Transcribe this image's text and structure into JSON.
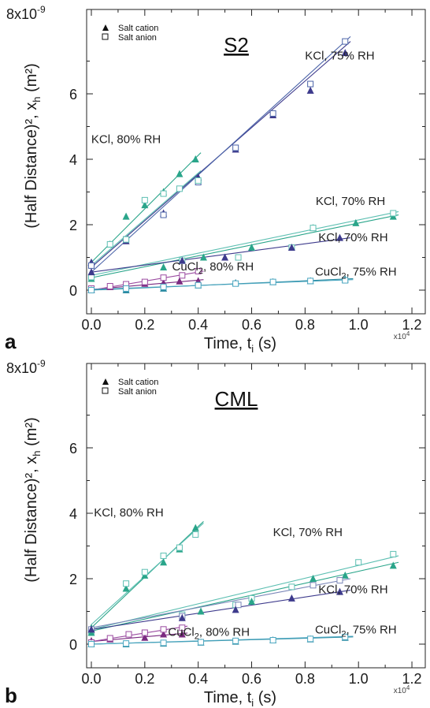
{
  "chart_data": [
    {
      "type": "scatter",
      "panel_letter": "a",
      "title": "S2",
      "xlabel": "Time, t",
      "xlabel_sub": "i",
      "xlabel_unit": " (s)",
      "x_exponent": "x10",
      "x_exponent_sup": "4",
      "ylabel": "(Half Distance)², x",
      "ylabel_sub": "h",
      "ylabel_tail": " (m²)",
      "y_top_label": "8x10",
      "y_top_sup": "-9",
      "xlim": [
        0,
        1.25
      ],
      "ylim": [
        0,
        8
      ],
      "x_ticks": [
        "0.0",
        "0.2",
        "0.4",
        "0.6",
        "0.8",
        "1.0",
        "1.2"
      ],
      "y_ticks": [
        "0",
        "2",
        "4",
        "6"
      ],
      "legend": [
        {
          "label": "Salt cation",
          "marker": "triangle-filled"
        },
        {
          "label": "Salt anion",
          "marker": "square-open"
        }
      ],
      "annotations": [
        {
          "text": "KCl, 75% RH",
          "x": 0.93,
          "y": 7.05
        },
        {
          "text": "KCl, 80% RH",
          "x": 0.13,
          "y": 4.5
        },
        {
          "text": "KCl, 70% RH",
          "x": 0.97,
          "y": 2.6
        },
        {
          "text": "KCl, 70% RH",
          "x": 0.98,
          "y": 1.5
        },
        {
          "text": "CuCl",
          "sub": "2",
          "tail": ", 80% RH",
          "x": 0.455,
          "y": 0.6
        },
        {
          "text": "CuCl",
          "sub": "2",
          "tail": ", 75% RH",
          "x": 0.99,
          "y": 0.45
        }
      ],
      "series": [
        {
          "group": "KCl, 75% RH",
          "kind": "cation",
          "color": "#3d3a8c",
          "x": [
            0.0,
            0.13,
            0.27,
            0.4,
            0.54,
            0.68,
            0.82,
            0.95
          ],
          "y": [
            0.85,
            1.5,
            2.35,
            3.45,
            4.3,
            5.35,
            6.1,
            7.25
          ],
          "fit": [
            0.0,
            0.7,
            0.97,
            7.6
          ]
        },
        {
          "group": "KCl, 75% RH",
          "kind": "anion",
          "color": "#4a63a8",
          "x": [
            0.0,
            0.13,
            0.27,
            0.4,
            0.54,
            0.68,
            0.82,
            0.95
          ],
          "y": [
            0.75,
            1.55,
            2.3,
            3.3,
            4.35,
            5.4,
            6.3,
            7.6
          ],
          "fit": [
            0.0,
            0.55,
            0.97,
            7.75
          ]
        },
        {
          "group": "KCl, 80% RH",
          "kind": "cation",
          "color": "#2aa58a",
          "x": [
            0.07,
            0.13,
            0.2,
            0.27,
            0.33,
            0.39
          ],
          "y": [
            1.4,
            2.25,
            2.6,
            3.0,
            3.55,
            4.0
          ],
          "fit": [
            0.0,
            0.85,
            0.41,
            4.2
          ]
        },
        {
          "group": "KCl, 80% RH",
          "kind": "anion",
          "color": "#5dbfb2",
          "x": [
            0.07,
            0.13,
            0.2,
            0.27,
            0.33,
            0.4
          ],
          "y": [
            1.4,
            1.55,
            2.75,
            2.95,
            3.1,
            3.35
          ],
          "fit": [
            0.0,
            0.75,
            0.41,
            3.65
          ]
        },
        {
          "group": "KCl, 70% RH",
          "kind": "cation",
          "color": "#2aa58a",
          "x": [
            0.0,
            0.27,
            0.42,
            0.6,
            0.83,
            0.99,
            1.13
          ],
          "y": [
            0.35,
            0.7,
            1.0,
            1.3,
            1.9,
            2.05,
            2.25
          ],
          "fit": [
            0.0,
            0.38,
            1.15,
            2.3
          ]
        },
        {
          "group": "KCl, 70% RH",
          "kind": "anion",
          "color": "#5dbfb2",
          "x": [
            0.0,
            0.34,
            0.55,
            0.75,
            0.83,
            1.13
          ],
          "y": [
            0.4,
            0.9,
            1.0,
            1.3,
            1.9,
            2.35
          ],
          "fit": [
            0.0,
            0.45,
            1.15,
            2.4
          ]
        },
        {
          "group": "KCl, 70% RH",
          "kind": "cation",
          "color": "#3d3a8c",
          "x": [
            0.0,
            0.34,
            0.5,
            0.75,
            0.93
          ],
          "y": [
            0.55,
            0.9,
            1.0,
            1.3,
            1.6
          ],
          "fit": [
            0.0,
            0.55,
            0.97,
            1.6
          ]
        },
        {
          "group": "CuCl2, 80% RH",
          "kind": "cation",
          "color": "#7a2a80",
          "x": [
            0.0,
            0.07,
            0.13,
            0.2,
            0.27,
            0.33,
            0.4
          ],
          "y": [
            0.02,
            0.1,
            0.15,
            0.2,
            0.22,
            0.27,
            0.28
          ],
          "fit": [
            0.0,
            0.02,
            0.42,
            0.32
          ]
        },
        {
          "group": "CuCl2, 80% RH",
          "kind": "anion",
          "color": "#9a4aa0",
          "x": [
            0.0,
            0.07,
            0.13,
            0.2,
            0.27,
            0.34,
            0.4
          ],
          "y": [
            0.05,
            0.12,
            0.18,
            0.25,
            0.38,
            0.45,
            0.58
          ],
          "fit": [
            0.0,
            0.0,
            0.42,
            0.58
          ]
        },
        {
          "group": "CuCl2, 75% RH",
          "kind": "cation",
          "color": "#2a8aa0",
          "x": [
            0.0,
            0.13,
            0.27,
            0.4,
            0.54,
            0.68,
            0.82,
            0.95
          ],
          "y": [
            0.0,
            0.0,
            0.05,
            0.15,
            0.22,
            0.25,
            0.28,
            0.33
          ],
          "fit": [
            0.0,
            0.0,
            0.98,
            0.35
          ]
        },
        {
          "group": "CuCl2, 75% RH",
          "kind": "anion",
          "color": "#4aa6c0",
          "x": [
            0.0,
            0.13,
            0.27,
            0.4,
            0.54,
            0.68,
            0.82,
            0.95
          ],
          "y": [
            0.0,
            0.05,
            0.1,
            0.15,
            0.2,
            0.25,
            0.28,
            0.3
          ],
          "fit": [
            0.0,
            0.02,
            0.98,
            0.32
          ]
        }
      ]
    },
    {
      "type": "scatter",
      "panel_letter": "b",
      "title": "CML",
      "xlabel": "Time, t",
      "xlabel_sub": "i",
      "xlabel_unit": " (s)",
      "x_exponent": "x10",
      "x_exponent_sup": "4",
      "ylabel": "(Half Distance)², x",
      "ylabel_sub": "h",
      "ylabel_tail": " (m²)",
      "y_top_label": "8x10",
      "y_top_sup": "-9",
      "xlim": [
        0,
        1.25
      ],
      "ylim": [
        0,
        8
      ],
      "x_ticks": [
        "0.0",
        "0.2",
        "0.4",
        "0.6",
        "0.8",
        "1.0",
        "1.2"
      ],
      "y_ticks": [
        "0",
        "2",
        "4",
        "6"
      ],
      "legend": [
        {
          "label": "Salt cation",
          "marker": "triangle-filled"
        },
        {
          "label": "Salt anion",
          "marker": "square-open"
        }
      ],
      "annotations": [
        {
          "text": "KCl, 80% RH",
          "x": 0.14,
          "y": 3.9
        },
        {
          "text": "KCl, 70% RH",
          "x": 0.81,
          "y": 3.3
        },
        {
          "text": "KCl, 70% RH",
          "x": 0.98,
          "y": 1.55
        },
        {
          "text": "CuCl",
          "sub": "2",
          "tail": ", 80% RH",
          "x": 0.44,
          "y": 0.25
        },
        {
          "text": "CuCl",
          "sub": "2",
          "tail": ", 75% RH",
          "x": 0.99,
          "y": 0.32
        }
      ],
      "series": [
        {
          "group": "KCl, 80% RH",
          "kind": "cation",
          "color": "#2aa58a",
          "x": [
            0.0,
            0.13,
            0.2,
            0.27,
            0.33,
            0.39
          ],
          "y": [
            0.5,
            1.7,
            2.1,
            2.5,
            2.9,
            3.55
          ],
          "fit": [
            0.0,
            0.5,
            0.42,
            3.75
          ]
        },
        {
          "group": "KCl, 80% RH",
          "kind": "anion",
          "color": "#5dbfb2",
          "x": [
            0.0,
            0.13,
            0.2,
            0.27,
            0.33,
            0.39
          ],
          "y": [
            0.4,
            1.85,
            2.2,
            2.7,
            2.95,
            3.35
          ],
          "fit": [
            0.0,
            0.6,
            0.42,
            3.7
          ]
        },
        {
          "group": "KCl, 70% RH",
          "kind": "anion",
          "color": "#5dbfb2",
          "x": [
            0.0,
            0.34,
            0.54,
            0.6,
            0.75,
            1.0,
            1.13
          ],
          "y": [
            0.4,
            0.9,
            1.2,
            1.4,
            1.75,
            2.5,
            2.75
          ],
          "fit": [
            0.0,
            0.45,
            1.15,
            2.7
          ]
        },
        {
          "group": "KCl, 70% RH",
          "kind": "cation",
          "color": "#2aa58a",
          "x": [
            0.0,
            0.41,
            0.6,
            0.83,
            0.95,
            1.13
          ],
          "y": [
            0.35,
            1.0,
            1.3,
            2.0,
            2.1,
            2.4
          ],
          "fit": [
            0.0,
            0.4,
            1.15,
            2.5
          ]
        },
        {
          "group": "KCl, 70% RH",
          "kind": "anion",
          "color": "#7a86b8",
          "x": [
            0.0,
            0.34,
            0.55,
            0.83,
            0.93
          ],
          "y": [
            0.45,
            0.85,
            1.2,
            1.8,
            1.95
          ],
          "fit": [
            0.0,
            0.5,
            0.97,
            2.0
          ]
        },
        {
          "group": "KCl, 70% RH",
          "kind": "cation",
          "color": "#3d3a8c",
          "x": [
            0.0,
            0.34,
            0.54,
            0.75,
            0.93
          ],
          "y": [
            0.45,
            0.8,
            1.05,
            1.4,
            1.6
          ],
          "fit": [
            0.0,
            0.45,
            0.97,
            1.65
          ]
        },
        {
          "group": "CuCl2, 80% RH",
          "kind": "cation",
          "color": "#7a2a80",
          "x": [
            0.0,
            0.07,
            0.2,
            0.27,
            0.34
          ],
          "y": [
            0.1,
            0.15,
            0.2,
            0.3,
            0.3
          ],
          "fit": [
            0.0,
            0.08,
            0.36,
            0.34
          ]
        },
        {
          "group": "CuCl2, 80% RH",
          "kind": "anion",
          "color": "#9a4aa0",
          "x": [
            0.0,
            0.07,
            0.14,
            0.2,
            0.27,
            0.34
          ],
          "y": [
            0.05,
            0.18,
            0.3,
            0.35,
            0.45,
            0.5
          ],
          "fit": [
            0.0,
            0.08,
            0.36,
            0.55
          ]
        },
        {
          "group": "CuCl2, 75% RH",
          "kind": "cation",
          "color": "#2a8aa0",
          "x": [
            0.0,
            0.13,
            0.27,
            0.41,
            0.54,
            0.68,
            0.82,
            0.95
          ],
          "y": [
            0.0,
            0.0,
            0.02,
            0.05,
            0.08,
            0.12,
            0.15,
            0.2
          ],
          "fit": [
            0.0,
            0.0,
            0.98,
            0.22
          ]
        },
        {
          "group": "CuCl2, 75% RH",
          "kind": "anion",
          "color": "#4aa6c0",
          "x": [
            0.0,
            0.13,
            0.27,
            0.41,
            0.54,
            0.68,
            0.82,
            0.95
          ],
          "y": [
            0.0,
            0.02,
            0.04,
            0.06,
            0.1,
            0.12,
            0.16,
            0.22
          ],
          "fit": [
            0.0,
            0.0,
            0.98,
            0.24
          ]
        }
      ]
    }
  ]
}
